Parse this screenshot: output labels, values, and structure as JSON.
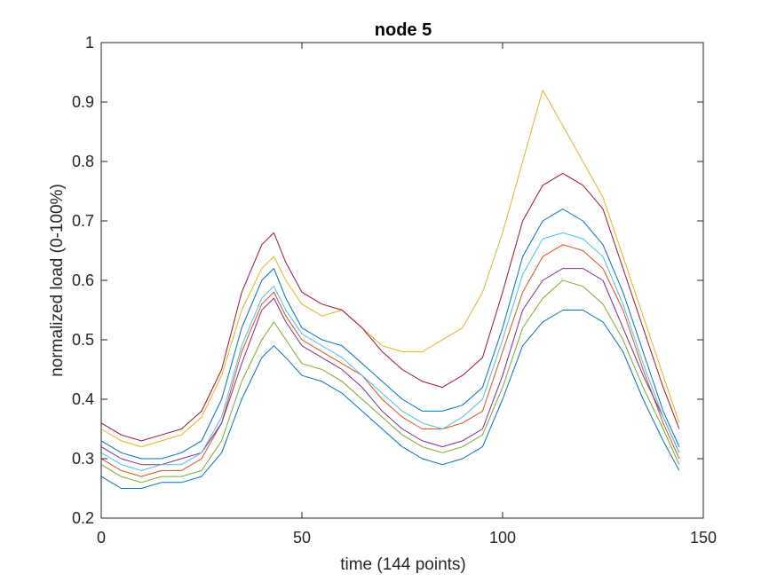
{
  "chart_data": {
    "type": "line",
    "title": "node 5",
    "xlabel": "time (144 points)",
    "ylabel": "normalized load (0-100%)",
    "xlim": [
      0,
      150
    ],
    "ylim": [
      0.2,
      1.0
    ],
    "xticks": [
      "0",
      "50",
      "100",
      "150"
    ],
    "yticks": [
      "0.2",
      "0.3",
      "0.4",
      "0.5",
      "0.6",
      "0.7",
      "0.8",
      "0.9",
      "1"
    ],
    "grid": false,
    "legend": "none",
    "colors": [
      "#0072BD",
      "#D95319",
      "#EDB120",
      "#7E2F8E",
      "#77AC30",
      "#4DBEEE",
      "#A2142F"
    ],
    "x": [
      0,
      5,
      10,
      15,
      20,
      25,
      30,
      35,
      40,
      43,
      46,
      50,
      55,
      60,
      65,
      70,
      75,
      80,
      85,
      90,
      95,
      100,
      105,
      110,
      115,
      120,
      125,
      130,
      135,
      140,
      144
    ],
    "series": [
      {
        "values": [
          0.33,
          0.31,
          0.3,
          0.3,
          0.31,
          0.33,
          0.4,
          0.52,
          0.6,
          0.62,
          0.57,
          0.52,
          0.5,
          0.49,
          0.46,
          0.43,
          0.4,
          0.38,
          0.38,
          0.39,
          0.42,
          0.52,
          0.64,
          0.7,
          0.72,
          0.7,
          0.66,
          0.58,
          0.48,
          0.38,
          0.32
        ]
      },
      {
        "values": [
          0.3,
          0.28,
          0.27,
          0.28,
          0.28,
          0.3,
          0.36,
          0.48,
          0.56,
          0.58,
          0.54,
          0.5,
          0.48,
          0.46,
          0.44,
          0.4,
          0.37,
          0.35,
          0.35,
          0.36,
          0.38,
          0.48,
          0.58,
          0.64,
          0.66,
          0.65,
          0.62,
          0.55,
          0.45,
          0.36,
          0.3
        ]
      },
      {
        "values": [
          0.35,
          0.33,
          0.32,
          0.33,
          0.34,
          0.37,
          0.44,
          0.55,
          0.62,
          0.64,
          0.6,
          0.56,
          0.54,
          0.55,
          0.52,
          0.49,
          0.48,
          0.48,
          0.5,
          0.52,
          0.58,
          0.68,
          0.8,
          0.92,
          0.86,
          0.8,
          0.74,
          0.64,
          0.54,
          0.44,
          0.36
        ]
      },
      {
        "values": [
          0.32,
          0.3,
          0.29,
          0.29,
          0.3,
          0.31,
          0.36,
          0.46,
          0.55,
          0.57,
          0.53,
          0.49,
          0.47,
          0.45,
          0.42,
          0.38,
          0.35,
          0.33,
          0.32,
          0.33,
          0.35,
          0.44,
          0.55,
          0.6,
          0.62,
          0.62,
          0.6,
          0.52,
          0.44,
          0.37,
          0.31
        ]
      },
      {
        "values": [
          0.29,
          0.27,
          0.26,
          0.27,
          0.27,
          0.28,
          0.33,
          0.43,
          0.5,
          0.53,
          0.5,
          0.46,
          0.45,
          0.43,
          0.4,
          0.37,
          0.34,
          0.32,
          0.31,
          0.32,
          0.34,
          0.42,
          0.52,
          0.57,
          0.6,
          0.59,
          0.56,
          0.5,
          0.42,
          0.35,
          0.29
        ]
      },
      {
        "values": [
          0.31,
          0.29,
          0.28,
          0.29,
          0.29,
          0.31,
          0.37,
          0.49,
          0.57,
          0.59,
          0.55,
          0.51,
          0.49,
          0.47,
          0.44,
          0.41,
          0.38,
          0.36,
          0.35,
          0.37,
          0.4,
          0.5,
          0.61,
          0.67,
          0.68,
          0.67,
          0.64,
          0.56,
          0.46,
          0.37,
          0.31
        ]
      },
      {
        "values": [
          0.36,
          0.34,
          0.33,
          0.34,
          0.35,
          0.38,
          0.45,
          0.58,
          0.66,
          0.68,
          0.63,
          0.58,
          0.56,
          0.55,
          0.52,
          0.48,
          0.45,
          0.43,
          0.42,
          0.44,
          0.47,
          0.58,
          0.7,
          0.76,
          0.78,
          0.76,
          0.72,
          0.62,
          0.52,
          0.42,
          0.35
        ]
      },
      {
        "values": [
          0.27,
          0.25,
          0.25,
          0.26,
          0.26,
          0.27,
          0.31,
          0.4,
          0.47,
          0.49,
          0.47,
          0.44,
          0.43,
          0.41,
          0.38,
          0.35,
          0.32,
          0.3,
          0.29,
          0.3,
          0.32,
          0.4,
          0.49,
          0.53,
          0.55,
          0.55,
          0.53,
          0.48,
          0.4,
          0.33,
          0.28
        ]
      }
    ]
  }
}
